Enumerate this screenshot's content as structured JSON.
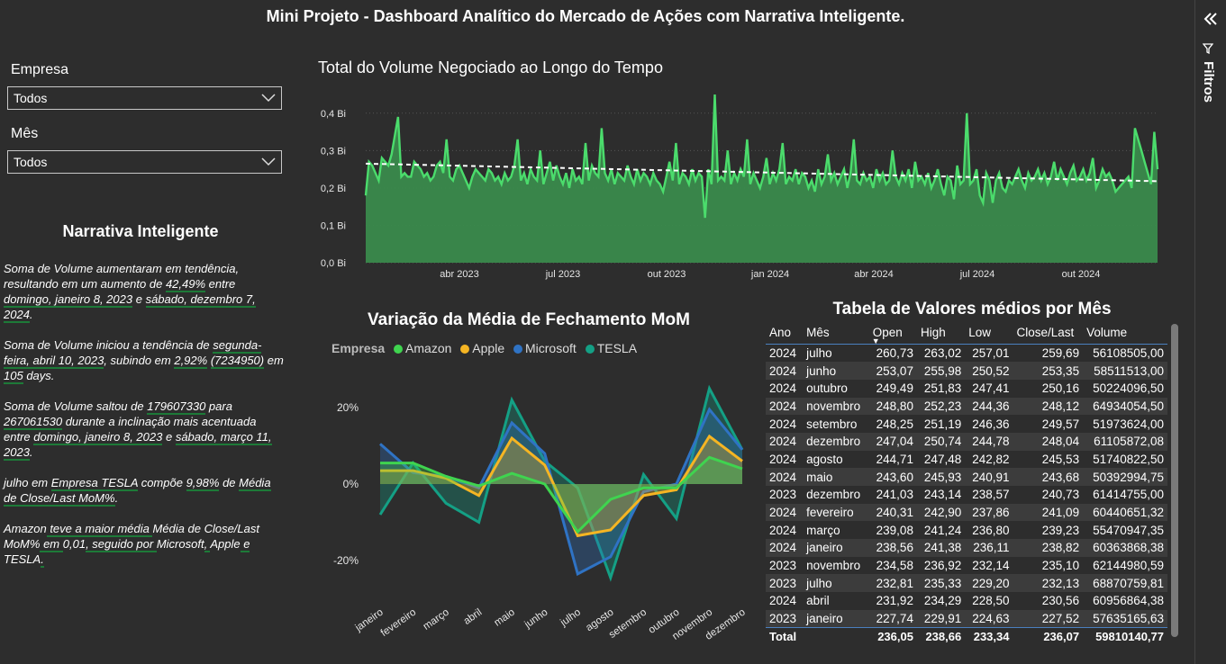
{
  "title": "Mini Projeto - Dashboard Analítico do Mercado de Ações com Narrativa Inteligente.",
  "filters": {
    "empresa_label": "Empresa",
    "empresa_value": "Todos",
    "mes_label": "Mês",
    "mes_value": "Todos",
    "pane_label": "Filtros"
  },
  "narrative": {
    "title": "Narrativa Inteligente",
    "p1": [
      "Soma de Volume aumentaram em tendência, resultando em um aumento de ",
      "42,49%",
      " entre ",
      "domingo, janeiro 8, 2023",
      " e ",
      "sábado, dezembro 7, 2024",
      "."
    ],
    "p2": [
      "Soma de Volume iniciou a tendência de ",
      "segunda-feira, abril 10, 2023",
      ", subindo em ",
      "2,92%",
      " ",
      "(7234950)",
      " em ",
      "105",
      " days."
    ],
    "p3": [
      "Soma de Volume saltou de ",
      "179607330",
      " para ",
      "267061530",
      " durante a inclinação mais acentuada entre ",
      "domingo, janeiro 8, 2023",
      " e ",
      "sábado, março 11, 2023",
      "."
    ],
    "p4": [
      "julho em ",
      "Empresa TESLA",
      " compõe ",
      "9,98%",
      " de ",
      "Média de Close/Last MoM%",
      "."
    ],
    "p5": [
      "Amazon",
      " teve a maior média ",
      "Média de Close/Last MoM%",
      " em ",
      "0,01",
      ", seguido por ",
      "Microsoft",
      ", ",
      "Apple",
      " e ",
      "TESLA",
      "."
    ]
  },
  "colors": {
    "green": "#4bdc6c",
    "amazon": "#3fd44f",
    "apple": "#f5b523",
    "microsoft": "#2f73c4",
    "tesla": "#14a085"
  },
  "chart_data": [
    {
      "type": "area",
      "title": "Total do Volume Negociado ao Longo do Tempo",
      "xlabel": "",
      "ylabel": "",
      "y_ticks": [
        "0,0 Bi",
        "0,1 Bi",
        "0,2 Bi",
        "0,3 Bi",
        "0,4 Bi"
      ],
      "x_ticks": [
        "abr 2023",
        "jul 2023",
        "out 2023",
        "jan 2024",
        "abr 2024",
        "jul 2024",
        "out 2024"
      ],
      "ylim": [
        0,
        0.45
      ],
      "trend": [
        0.265,
        0.218
      ],
      "values": [
        0.18,
        0.27,
        0.26,
        0.24,
        0.22,
        0.28,
        0.27,
        0.26,
        0.29,
        0.34,
        0.39,
        0.23,
        0.24,
        0.23,
        0.23,
        0.27,
        0.26,
        0.25,
        0.23,
        0.24,
        0.22,
        0.23,
        0.26,
        0.27,
        0.24,
        0.33,
        0.23,
        0.22,
        0.25,
        0.26,
        0.24,
        0.22,
        0.2,
        0.23,
        0.25,
        0.24,
        0.23,
        0.22,
        0.25,
        0.24,
        0.22,
        0.23,
        0.21,
        0.24,
        0.22,
        0.23,
        0.26,
        0.33,
        0.22,
        0.24,
        0.21,
        0.25,
        0.23,
        0.22,
        0.3,
        0.21,
        0.24,
        0.27,
        0.22,
        0.26,
        0.23,
        0.21,
        0.24,
        0.2,
        0.25,
        0.22,
        0.23,
        0.21,
        0.32,
        0.22,
        0.26,
        0.24,
        0.23,
        0.36,
        0.24,
        0.22,
        0.25,
        0.21,
        0.24,
        0.23,
        0.22,
        0.26,
        0.23,
        0.21,
        0.25,
        0.22,
        0.24,
        0.23,
        0.21,
        0.24,
        0.22,
        0.21,
        0.19,
        0.23,
        0.27,
        0.22,
        0.32,
        0.21,
        0.24,
        0.23,
        0.21,
        0.25,
        0.22,
        0.24,
        0.23,
        0.12,
        0.25,
        0.21,
        0.45,
        0.22,
        0.23,
        0.22,
        0.3,
        0.21,
        0.24,
        0.22,
        0.25,
        0.23,
        0.33,
        0.21,
        0.24,
        0.22,
        0.2,
        0.23,
        0.28,
        0.21,
        0.24,
        0.22,
        0.25,
        0.32,
        0.21,
        0.23,
        0.22,
        0.25,
        0.21,
        0.24,
        0.23,
        0.2,
        0.22,
        0.19,
        0.25,
        0.21,
        0.23,
        0.29,
        0.22,
        0.24,
        0.21,
        0.23,
        0.25,
        0.2,
        0.24,
        0.33,
        0.22,
        0.21,
        0.24,
        0.22,
        0.23,
        0.2,
        0.25,
        0.22,
        0.24,
        0.21,
        0.22,
        0.3,
        0.23,
        0.21,
        0.24,
        0.22,
        0.25,
        0.2,
        0.27,
        0.22,
        0.23,
        0.21,
        0.24,
        0.2,
        0.22,
        0.25,
        0.21,
        0.18,
        0.23,
        0.22,
        0.17,
        0.26,
        0.21,
        0.22,
        0.4,
        0.21,
        0.22,
        0.25,
        0.18,
        0.16,
        0.24,
        0.22,
        0.16,
        0.22,
        0.24,
        0.2,
        0.19,
        0.22,
        0.21,
        0.23,
        0.25,
        0.22,
        0.2,
        0.24,
        0.22,
        0.23,
        0.25,
        0.22,
        0.24,
        0.21,
        0.23,
        0.27,
        0.22,
        0.25,
        0.23,
        0.21,
        0.24,
        0.26,
        0.22,
        0.23,
        0.25,
        0.22,
        0.24,
        0.28,
        0.2,
        0.22,
        0.25,
        0.23,
        0.24,
        0.22,
        0.19,
        0.2,
        0.21,
        0.22,
        0.23,
        0.2,
        0.36,
        0.33,
        0.3,
        0.27,
        0.24,
        0.21,
        0.35,
        0.25
      ]
    },
    {
      "type": "area",
      "title": "Variação da Média de Fechamento MoM",
      "legend_title": "Empresa",
      "categories": [
        "janeiro",
        "fevereiro",
        "março",
        "abril",
        "maio",
        "junho",
        "julho",
        "agosto",
        "setembro",
        "outubro",
        "novembro",
        "dezembro"
      ],
      "y_ticks": [
        "20%",
        "0%",
        "-20%"
      ],
      "ylim": [
        -27,
        27
      ],
      "series": [
        {
          "name": "Amazon",
          "values": [
            5.5,
            5.5,
            2.0,
            -0.5,
            2.8,
            0.0,
            -12.5,
            -4.0,
            -1.0,
            -1.0,
            7.0,
            4.0
          ]
        },
        {
          "name": "Apple",
          "values": [
            3.5,
            3.5,
            1.5,
            -3.0,
            12.0,
            5.0,
            -13.5,
            -12.0,
            -3.0,
            -1.5,
            12.5,
            6.0
          ]
        },
        {
          "name": "Microsoft",
          "values": [
            10.5,
            3.0,
            2.0,
            -1.0,
            16.0,
            8.0,
            -23.5,
            -19.0,
            -2.0,
            0.0,
            19.5,
            9.0
          ]
        },
        {
          "name": "TESLA",
          "values": [
            -8.0,
            5.5,
            -5.0,
            -10.0,
            22.0,
            6.0,
            -1.0,
            -24.5,
            2.5,
            -9.0,
            25.0,
            9.0
          ]
        }
      ]
    }
  ],
  "table": {
    "title": "Tabela de Valores médios por Mês",
    "columns": [
      "Ano",
      "Mês",
      "Open",
      "High",
      "Low",
      "Close/Last",
      "Volume"
    ],
    "rows": [
      [
        "2024",
        "julho",
        "260,73",
        "263,02",
        "257,01",
        "259,69",
        "56108505,00"
      ],
      [
        "2024",
        "junho",
        "253,07",
        "255,98",
        "250,52",
        "253,35",
        "58511513,00"
      ],
      [
        "2024",
        "outubro",
        "249,49",
        "251,83",
        "247,41",
        "250,16",
        "50224096,50"
      ],
      [
        "2024",
        "novembro",
        "248,80",
        "252,23",
        "244,36",
        "248,12",
        "64934054,50"
      ],
      [
        "2024",
        "setembro",
        "248,25",
        "251,19",
        "246,36",
        "249,57",
        "51973624,00"
      ],
      [
        "2024",
        "dezembro",
        "247,04",
        "250,74",
        "244,78",
        "248,04",
        "61105872,08"
      ],
      [
        "2024",
        "agosto",
        "244,71",
        "247,48",
        "242,82",
        "245,53",
        "51740822,50"
      ],
      [
        "2024",
        "maio",
        "243,60",
        "245,93",
        "240,91",
        "243,68",
        "50392994,75"
      ],
      [
        "2023",
        "dezembro",
        "241,03",
        "243,14",
        "238,57",
        "240,73",
        "61414755,00"
      ],
      [
        "2024",
        "fevereiro",
        "240,31",
        "242,90",
        "237,86",
        "241,09",
        "60440651,32"
      ],
      [
        "2024",
        "março",
        "239,08",
        "241,24",
        "236,80",
        "239,23",
        "55470947,35"
      ],
      [
        "2024",
        "janeiro",
        "238,56",
        "241,38",
        "236,11",
        "238,82",
        "60363868,38"
      ],
      [
        "2023",
        "novembro",
        "234,58",
        "236,92",
        "232,14",
        "235,10",
        "62144980,59"
      ],
      [
        "2023",
        "julho",
        "232,81",
        "235,33",
        "229,20",
        "232,13",
        "68870759,81"
      ],
      [
        "2024",
        "abril",
        "231,92",
        "234,29",
        "228,50",
        "230,56",
        "60956864,38"
      ],
      [
        "2023",
        "janeiro",
        "227,74",
        "229,91",
        "224,63",
        "227,52",
        "57635165,63"
      ]
    ],
    "total": [
      "Total",
      "",
      "236,05",
      "238,66",
      "233,34",
      "236,07",
      "59810140,77"
    ]
  }
}
